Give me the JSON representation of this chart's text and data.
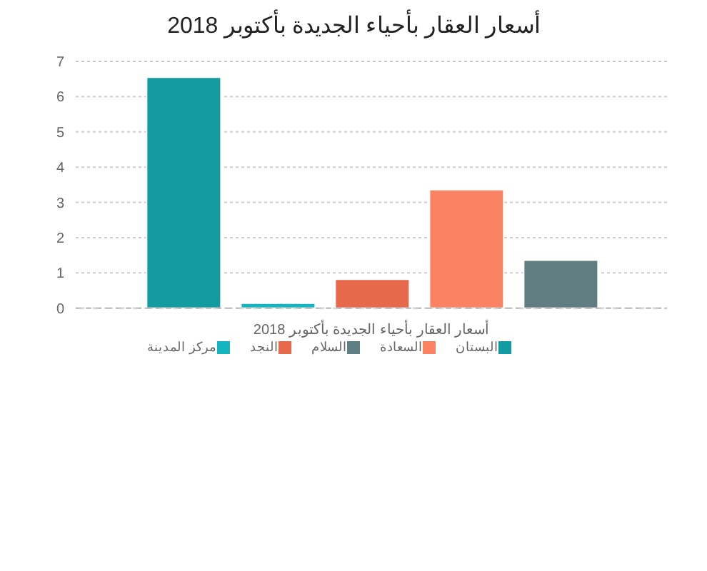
{
  "chart_data": {
    "type": "bar",
    "title": "أسعار العقار بأحياء الجديدة بأكتوبر 2018",
    "xlabel": "أسعار العقار بأحياء الجديدة بأكتوبر 2018",
    "categories": [
      null
    ],
    "series": [
      {
        "name": "البستان",
        "color": "#129ca1",
        "values": [
          6.55
        ]
      },
      {
        "name": "مركز المدينة",
        "color": "#14b5c0",
        "values": [
          0.14
        ]
      },
      {
        "name": "النجد",
        "color": "#e5694a",
        "values": [
          0.82
        ]
      },
      {
        "name": "السعادة",
        "color": "#fb8263",
        "values": [
          3.36
        ]
      },
      {
        "name": "السلام",
        "color": "#607d82",
        "values": [
          1.36
        ]
      }
    ],
    "ylim": [
      0,
      7
    ],
    "yticks": [
      0,
      1,
      2,
      3,
      4,
      5,
      6,
      7
    ],
    "grid": "y",
    "legend": "bottom"
  }
}
